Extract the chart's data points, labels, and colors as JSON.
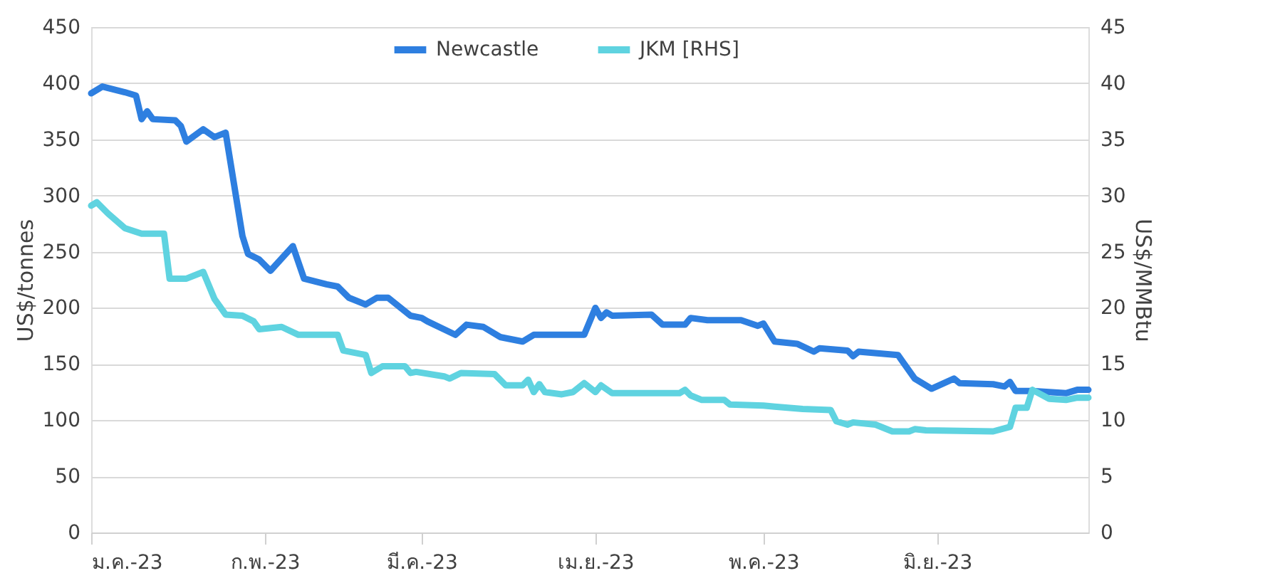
{
  "chart_data": {
    "type": "line",
    "ylabel": "US$/tonnes",
    "y2label": "US$/MMBtu",
    "legend": "top",
    "grid": "y",
    "line_style": "solid",
    "marker": "none",
    "xlim": [
      "2023-01-01",
      "2023-06-28"
    ],
    "xticks": [
      {
        "value": "2023-01-01",
        "label": "ม.ค.-23"
      },
      {
        "value": "2023-02-01",
        "label": "ก.พ.-23"
      },
      {
        "value": "2023-03-01",
        "label": "มี.ค.-23"
      },
      {
        "value": "2023-04-01",
        "label": "เม.ย.-23"
      },
      {
        "value": "2023-05-01",
        "label": "พ.ค.-23"
      },
      {
        "value": "2023-06-01",
        "label": "มิ.ย.-23"
      }
    ],
    "ylim": [
      0,
      450
    ],
    "yticks": [
      0,
      50,
      100,
      150,
      200,
      250,
      300,
      350,
      400,
      450
    ],
    "y2lim": [
      0,
      45
    ],
    "y2ticks": [
      0,
      5,
      10,
      15,
      20,
      25,
      30,
      35,
      40,
      45
    ],
    "series": [
      {
        "name": "Newcastle",
        "color": "#2e7fe0",
        "x": [
          "2023-01-01",
          "2023-01-03",
          "2023-01-07",
          "2023-01-09",
          "2023-01-10",
          "2023-01-11",
          "2023-01-12",
          "2023-01-16",
          "2023-01-17",
          "2023-01-18",
          "2023-01-21",
          "2023-01-23",
          "2023-01-25",
          "2023-01-28",
          "2023-01-29",
          "2023-01-31",
          "2023-02-02",
          "2023-02-06",
          "2023-02-08",
          "2023-02-12",
          "2023-02-14",
          "2023-02-16",
          "2023-02-19",
          "2023-02-21",
          "2023-02-23",
          "2023-02-27",
          "2023-03-01",
          "2023-03-02",
          "2023-03-07",
          "2023-03-09",
          "2023-03-12",
          "2023-03-15",
          "2023-03-19",
          "2023-03-21",
          "2023-03-30",
          "2023-04-01",
          "2023-04-02",
          "2023-04-03",
          "2023-04-04",
          "2023-04-11",
          "2023-04-13",
          "2023-04-17",
          "2023-04-18",
          "2023-04-21",
          "2023-04-27",
          "2023-04-30",
          "2023-05-01",
          "2023-05-03",
          "2023-05-07",
          "2023-05-10",
          "2023-05-11",
          "2023-05-16",
          "2023-05-17",
          "2023-05-18",
          "2023-05-25",
          "2023-05-28",
          "2023-05-31",
          "2023-06-04",
          "2023-06-05",
          "2023-06-11",
          "2023-06-13",
          "2023-06-14",
          "2023-06-15",
          "2023-06-18",
          "2023-06-24",
          "2023-06-26",
          "2023-06-28"
        ],
        "values": [
          391,
          397,
          392,
          389,
          368,
          375,
          368,
          367,
          362,
          348,
          359,
          352,
          356,
          264,
          248,
          243,
          233,
          255,
          226,
          221,
          219,
          209,
          203,
          209,
          209,
          193,
          191,
          188,
          176,
          185,
          183,
          174,
          170,
          176,
          176,
          200,
          191,
          196,
          193,
          194,
          185,
          185,
          191,
          189,
          189,
          184,
          186,
          170,
          168,
          161,
          164,
          162,
          157,
          161,
          158,
          137,
          128,
          137,
          133,
          132,
          130,
          134,
          126,
          126,
          124,
          127,
          127
        ]
      },
      {
        "name": "JKM [RHS]",
        "color": "#5fd3e0",
        "axis": "y2",
        "x": [
          "2023-01-01",
          "2023-01-02",
          "2023-01-04",
          "2023-01-07",
          "2023-01-10",
          "2023-01-14",
          "2023-01-15",
          "2023-01-18",
          "2023-01-21",
          "2023-01-23",
          "2023-01-25",
          "2023-01-28",
          "2023-01-30",
          "2023-01-31",
          "2023-02-04",
          "2023-02-07",
          "2023-02-14",
          "2023-02-15",
          "2023-02-19",
          "2023-02-20",
          "2023-02-22",
          "2023-02-26",
          "2023-02-27",
          "2023-02-28",
          "2023-03-05",
          "2023-03-06",
          "2023-03-08",
          "2023-03-14",
          "2023-03-16",
          "2023-03-19",
          "2023-03-20",
          "2023-03-21",
          "2023-03-22",
          "2023-03-23",
          "2023-03-26",
          "2023-03-28",
          "2023-03-30",
          "2023-04-01",
          "2023-04-02",
          "2023-04-04",
          "2023-04-16",
          "2023-04-17",
          "2023-04-18",
          "2023-04-20",
          "2023-04-24",
          "2023-04-25",
          "2023-05-01",
          "2023-05-03",
          "2023-05-08",
          "2023-05-13",
          "2023-05-14",
          "2023-05-16",
          "2023-05-17",
          "2023-05-21",
          "2023-05-24",
          "2023-05-27",
          "2023-05-28",
          "2023-05-30",
          "2023-06-11",
          "2023-06-14",
          "2023-06-15",
          "2023-06-17",
          "2023-06-18",
          "2023-06-21",
          "2023-06-24",
          "2023-06-26",
          "2023-06-28"
        ],
        "values": [
          29.1,
          29.4,
          28.4,
          27.1,
          26.6,
          26.6,
          22.6,
          22.6,
          23.2,
          20.8,
          19.4,
          19.3,
          18.8,
          18.1,
          18.3,
          17.6,
          17.6,
          16.2,
          15.8,
          14.2,
          14.8,
          14.8,
          14.2,
          14.3,
          13.9,
          13.7,
          14.2,
          14.1,
          13.1,
          13.1,
          13.6,
          12.5,
          13.2,
          12.5,
          12.3,
          12.5,
          13.3,
          12.5,
          13.1,
          12.4,
          12.4,
          12.7,
          12.2,
          11.8,
          11.8,
          11.4,
          11.3,
          11.2,
          11.0,
          10.9,
          9.9,
          9.6,
          9.8,
          9.6,
          9.0,
          9.0,
          9.2,
          9.1,
          9.0,
          9.4,
          11.1,
          11.1,
          12.7,
          11.9,
          11.8,
          12.0,
          12.0
        ]
      }
    ]
  }
}
